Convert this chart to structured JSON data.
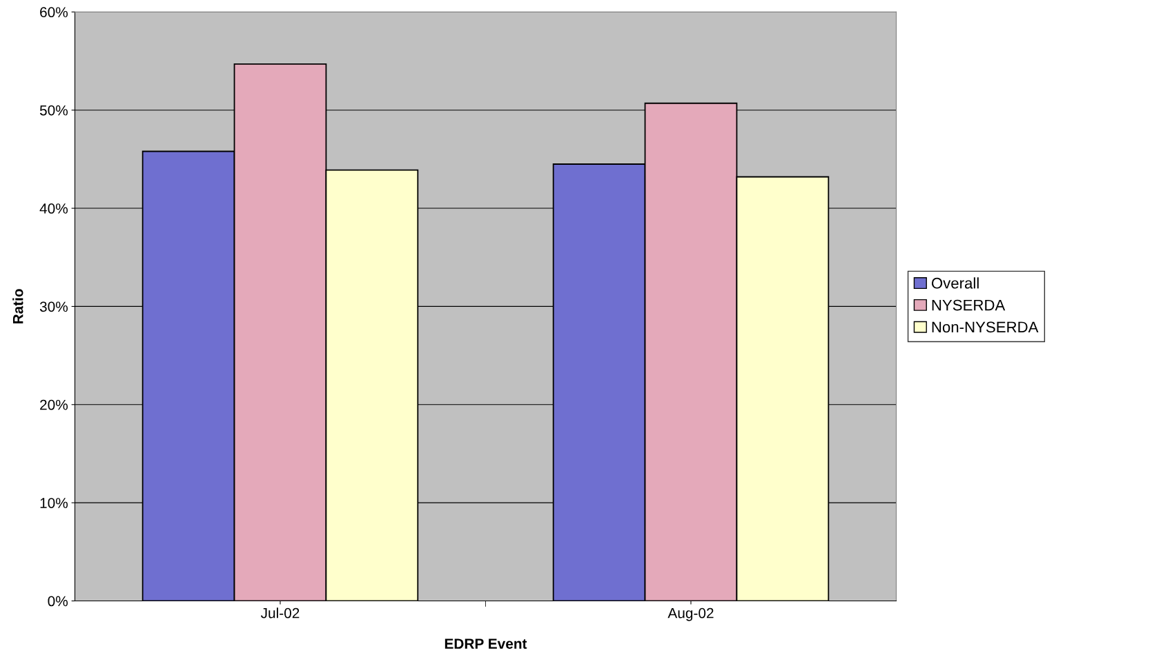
{
  "chart_data": {
    "type": "bar",
    "xlabel": "EDRP Event",
    "ylabel": "Ratio",
    "categories": [
      "Jul-02",
      "Aug-02"
    ],
    "series": [
      {
        "name": "Overall",
        "color": "#6f6fd0",
        "values": [
          45.8,
          44.5
        ]
      },
      {
        "name": "NYSERDA",
        "color": "#e4a9ba",
        "values": [
          54.7,
          50.7
        ]
      },
      {
        "name": "Non-NYSERDA",
        "color": "#ffffcc",
        "values": [
          43.9,
          43.2
        ]
      }
    ],
    "ylim": [
      0,
      60
    ],
    "yticks": [
      {
        "value": 0,
        "label": "0%"
      },
      {
        "value": 10,
        "label": "10%"
      },
      {
        "value": 20,
        "label": "20%"
      },
      {
        "value": 30,
        "label": "30%"
      },
      {
        "value": 40,
        "label": "40%"
      },
      {
        "value": 50,
        "label": "50%"
      },
      {
        "value": 60,
        "label": "60%"
      }
    ],
    "grid": "y",
    "legend": "right"
  }
}
